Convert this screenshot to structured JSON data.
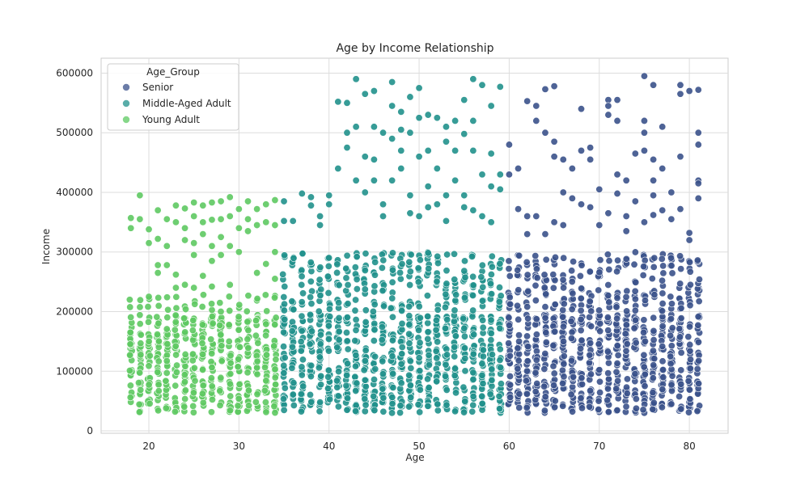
{
  "chart_data": {
    "type": "scatter",
    "title": "Age by Income Relationship",
    "xlabel": "Age",
    "ylabel": "Income",
    "xlim": [
      14.7,
      84.3
    ],
    "ylim": [
      -4000,
      625000
    ],
    "xticks": [
      20,
      30,
      40,
      50,
      60,
      70,
      80
    ],
    "yticks": [
      0,
      100000,
      200000,
      300000,
      400000,
      500000,
      600000
    ],
    "grid": true,
    "legend": {
      "title": "Age_Group",
      "placement": "top-left",
      "entries": [
        "Senior",
        "Middle-Aged Adult",
        "Young Adult"
      ]
    },
    "series": [
      {
        "name": "Senior",
        "color": "#3b528b",
        "x_range": [
          60,
          81
        ],
        "dense_band": [
          30000,
          195000
        ],
        "mid_band": [
          200000,
          300000
        ],
        "high_points": [
          [
            60,
            480000
          ],
          [
            60,
            430000
          ],
          [
            61,
            440000
          ],
          [
            62,
            553000
          ],
          [
            63,
            545000
          ],
          [
            63,
            520000
          ],
          [
            64,
            573000
          ],
          [
            64,
            500000
          ],
          [
            65,
            578000
          ],
          [
            65,
            485000
          ],
          [
            65,
            460000
          ],
          [
            66,
            455000
          ],
          [
            66,
            400000
          ],
          [
            67,
            440000
          ],
          [
            68,
            540000
          ],
          [
            68,
            470000
          ],
          [
            69,
            475000
          ],
          [
            69,
            455000
          ],
          [
            70,
            405000
          ],
          [
            71,
            555000
          ],
          [
            71,
            545000
          ],
          [
            71,
            530000
          ],
          [
            72,
            555000
          ],
          [
            72,
            520000
          ],
          [
            72,
            430000
          ],
          [
            73,
            420000
          ],
          [
            74,
            465000
          ],
          [
            75,
            595000
          ],
          [
            75,
            520000
          ],
          [
            75,
            500000
          ],
          [
            75,
            470000
          ],
          [
            76,
            580000
          ],
          [
            76,
            455000
          ],
          [
            76,
            420000
          ],
          [
            77,
            510000
          ],
          [
            77,
            440000
          ],
          [
            78,
            400000
          ],
          [
            79,
            580000
          ],
          [
            79,
            565000
          ],
          [
            79,
            460000
          ],
          [
            80,
            570000
          ],
          [
            81,
            572000
          ],
          [
            81,
            500000
          ],
          [
            81,
            480000
          ],
          [
            81,
            420000
          ],
          [
            81,
            415000
          ],
          [
            61,
            372000
          ],
          [
            62,
            360000
          ],
          [
            63,
            360000
          ],
          [
            64,
            330000
          ],
          [
            65,
            350000
          ],
          [
            66,
            345000
          ],
          [
            68,
            380000
          ],
          [
            70,
            345000
          ],
          [
            71,
            365000
          ],
          [
            72,
            398000
          ],
          [
            73,
            335000
          ],
          [
            74,
            385000
          ],
          [
            75,
            350000
          ],
          [
            76,
            362000
          ],
          [
            77,
            370000
          ],
          [
            78,
            355000
          ],
          [
            80,
            320000
          ],
          [
            80,
            332000
          ],
          [
            81,
            390000
          ],
          [
            62,
            330000
          ],
          [
            67,
            390000
          ],
          [
            69,
            375000
          ],
          [
            73,
            360000
          ],
          [
            76,
            395000
          ],
          [
            79,
            372000
          ]
        ]
      },
      {
        "name": "Middle-Aged Adult",
        "color": "#21918c",
        "x_range": [
          35,
          59
        ],
        "dense_band": [
          30000,
          195000
        ],
        "mid_band": [
          200000,
          300000
        ],
        "high_points": [
          [
            35,
            385000
          ],
          [
            35,
            352000
          ],
          [
            36,
            352000
          ],
          [
            37,
            398000
          ],
          [
            38,
            378000
          ],
          [
            38,
            392000
          ],
          [
            39,
            360000
          ],
          [
            39,
            345000
          ],
          [
            40,
            395000
          ],
          [
            40,
            380000
          ],
          [
            41,
            440000
          ],
          [
            41,
            552000
          ],
          [
            42,
            550000
          ],
          [
            42,
            500000
          ],
          [
            42,
            475000
          ],
          [
            43,
            590000
          ],
          [
            43,
            510000
          ],
          [
            43,
            420000
          ],
          [
            44,
            565000
          ],
          [
            44,
            460000
          ],
          [
            44,
            400000
          ],
          [
            45,
            570000
          ],
          [
            45,
            510000
          ],
          [
            45,
            455000
          ],
          [
            45,
            420000
          ],
          [
            46,
            500000
          ],
          [
            46,
            380000
          ],
          [
            46,
            360000
          ],
          [
            47,
            585000
          ],
          [
            47,
            545000
          ],
          [
            47,
            490000
          ],
          [
            47,
            420000
          ],
          [
            48,
            535000
          ],
          [
            48,
            505000
          ],
          [
            48,
            470000
          ],
          [
            48,
            440000
          ],
          [
            49,
            560000
          ],
          [
            49,
            500000
          ],
          [
            49,
            395000
          ],
          [
            49,
            365000
          ],
          [
            50,
            575000
          ],
          [
            50,
            525000
          ],
          [
            50,
            460000
          ],
          [
            50,
            360000
          ],
          [
            51,
            530000
          ],
          [
            51,
            470000
          ],
          [
            51,
            410000
          ],
          [
            52,
            525000
          ],
          [
            52,
            440000
          ],
          [
            52,
            380000
          ],
          [
            53,
            510000
          ],
          [
            53,
            485000
          ],
          [
            53,
            395000
          ],
          [
            54,
            520000
          ],
          [
            54,
            470000
          ],
          [
            54,
            420000
          ],
          [
            55,
            555000
          ],
          [
            55,
            498000
          ],
          [
            55,
            395000
          ],
          [
            56,
            590000
          ],
          [
            56,
            520000
          ],
          [
            56,
            470000
          ],
          [
            56,
            370000
          ],
          [
            57,
            580000
          ],
          [
            57,
            430000
          ],
          [
            57,
            360000
          ],
          [
            58,
            545000
          ],
          [
            58,
            465000
          ],
          [
            58,
            410000
          ],
          [
            58,
            350000
          ],
          [
            59,
            577000
          ],
          [
            59,
            430000
          ],
          [
            59,
            405000
          ],
          [
            55,
            375000
          ],
          [
            53,
            352000
          ],
          [
            51,
            375000
          ]
        ]
      },
      {
        "name": "Young Adult",
        "color": "#5ec962",
        "x_range": [
          18,
          34
        ],
        "dense_band": [
          30000,
          195000
        ],
        "mid_band": [
          200000,
          230000
        ],
        "high_points": [
          [
            18,
            357000
          ],
          [
            18,
            340000
          ],
          [
            19,
            395000
          ],
          [
            19,
            355000
          ],
          [
            20,
            338000
          ],
          [
            20,
            315000
          ],
          [
            20,
            225000
          ],
          [
            21,
            370000
          ],
          [
            21,
            322000
          ],
          [
            21,
            278000
          ],
          [
            21,
            265000
          ],
          [
            22,
            355000
          ],
          [
            22,
            310000
          ],
          [
            22,
            278000
          ],
          [
            23,
            378000
          ],
          [
            23,
            350000
          ],
          [
            23,
            262000
          ],
          [
            23,
            240000
          ],
          [
            24,
            373000
          ],
          [
            24,
            340000
          ],
          [
            24,
            320000
          ],
          [
            24,
            245000
          ],
          [
            25,
            383000
          ],
          [
            25,
            360000
          ],
          [
            25,
            315000
          ],
          [
            25,
            295000
          ],
          [
            25,
            240000
          ],
          [
            26,
            378000
          ],
          [
            26,
            350000
          ],
          [
            26,
            330000
          ],
          [
            26,
            260000
          ],
          [
            27,
            383000
          ],
          [
            27,
            354000
          ],
          [
            27,
            310000
          ],
          [
            27,
            285000
          ],
          [
            27,
            242000
          ],
          [
            28,
            385000
          ],
          [
            28,
            355000
          ],
          [
            28,
            325000
          ],
          [
            28,
            295000
          ],
          [
            29,
            392000
          ],
          [
            29,
            360000
          ],
          [
            29,
            310000
          ],
          [
            29,
            245000
          ],
          [
            30,
            372000
          ],
          [
            30,
            340000
          ],
          [
            30,
            300000
          ],
          [
            31,
            385000
          ],
          [
            31,
            355000
          ],
          [
            31,
            335000
          ],
          [
            32,
            372000
          ],
          [
            32,
            345000
          ],
          [
            32,
            265000
          ],
          [
            33,
            380000
          ],
          [
            33,
            350000
          ],
          [
            33,
            280000
          ],
          [
            34,
            387000
          ],
          [
            34,
            345000
          ],
          [
            34,
            300000
          ],
          [
            34,
            255000
          ]
        ]
      }
    ]
  }
}
